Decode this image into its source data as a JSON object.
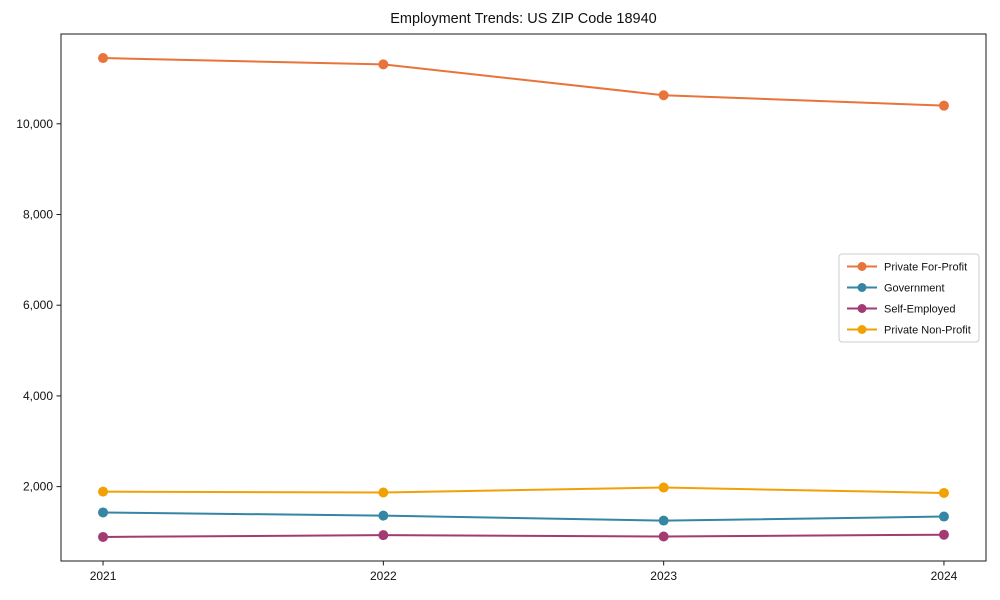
{
  "page": {
    "background": "#ffffff",
    "text_color": "#111111",
    "frame_color": "#1a1a1a"
  },
  "chart_data": {
    "type": "line",
    "title": "Employment Trends: US ZIP Code 18940",
    "categories": [
      "2021",
      "2022",
      "2023",
      "2024"
    ],
    "series": [
      {
        "name": "Private For-Profit",
        "slug": "private-for-profit",
        "color": "#E8743B",
        "values": [
          11450,
          11310,
          10630,
          10400
        ]
      },
      {
        "name": "Government",
        "slug": "government",
        "color": "#3585A4",
        "values": [
          1430,
          1360,
          1250,
          1340
        ]
      },
      {
        "name": "Self-Employed",
        "slug": "self-employed",
        "color": "#A23B72",
        "values": [
          890,
          930,
          900,
          940
        ]
      },
      {
        "name": "Private Non-Profit",
        "slug": "private-non-profit",
        "color": "#F2A104",
        "values": [
          1890,
          1870,
          1980,
          1860
        ]
      }
    ],
    "xlabel": "",
    "ylabel": "",
    "y_ticks": [
      2000,
      4000,
      6000,
      8000,
      10000
    ],
    "y_tick_labels": [
      "2,000",
      "4,000",
      "6,000",
      "8,000",
      "10,000"
    ],
    "ylim": [
      360,
      11980
    ],
    "grid": false,
    "legend": {
      "position": "center-right",
      "bordered": true,
      "entries": [
        "Private For-Profit",
        "Government",
        "Self-Employed",
        "Private Non-Profit"
      ]
    }
  }
}
